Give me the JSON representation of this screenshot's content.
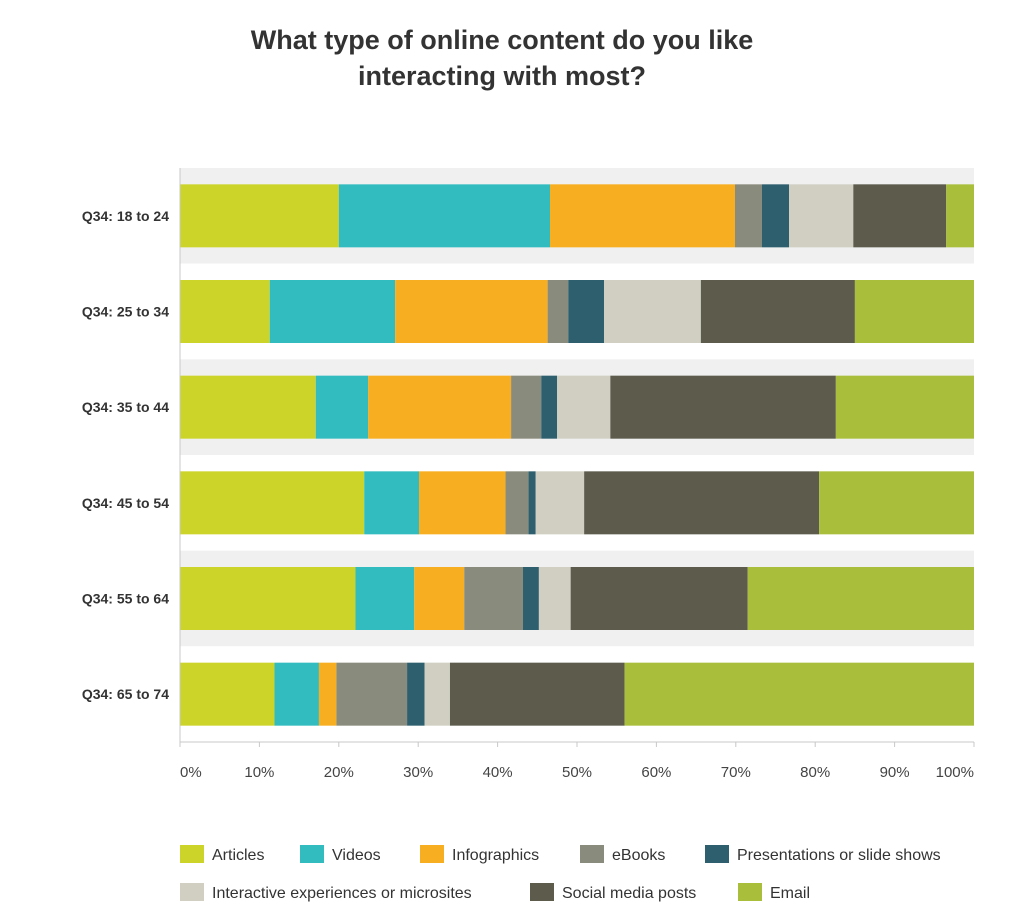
{
  "chart_data": {
    "type": "bar",
    "orientation": "horizontal",
    "stacked": true,
    "normalized": true,
    "title": "What type of online content do you like interacting with most?",
    "title_lines": [
      "What type of online content do you like",
      "interacting with most?"
    ],
    "xlabel": "",
    "ylabel": "",
    "xlim": [
      0,
      100
    ],
    "x_ticks": [
      "0%",
      "10%",
      "20%",
      "30%",
      "40%",
      "50%",
      "60%",
      "70%",
      "80%",
      "90%",
      "100%"
    ],
    "grid": false,
    "legend_position": "bottom",
    "categories": [
      "Q34: 18 to 24",
      "Q34: 25 to 34",
      "Q34: 35 to 44",
      "Q34: 45 to 54",
      "Q34: 55 to 64",
      "Q34: 65 to 74"
    ],
    "series": [
      {
        "name": "Articles",
        "color": "#ccd42a",
        "values": [
          20.0,
          11.3,
          17.1,
          23.2,
          22.1,
          11.9
        ]
      },
      {
        "name": "Videos",
        "color": "#33bcbf",
        "values": [
          26.6,
          15.8,
          6.6,
          6.9,
          7.4,
          5.6
        ]
      },
      {
        "name": "Infographics",
        "color": "#f7ae20",
        "values": [
          23.3,
          19.2,
          18.0,
          10.9,
          6.3,
          2.2
        ]
      },
      {
        "name": "eBooks",
        "color": "#898b7c",
        "values": [
          3.4,
          2.6,
          3.8,
          2.9,
          7.4,
          8.9
        ]
      },
      {
        "name": "Presentations or slide shows",
        "color": "#2e5f6e",
        "values": [
          3.4,
          4.5,
          2.0,
          0.9,
          2.0,
          2.2
        ]
      },
      {
        "name": "Interactive experiences or microsites",
        "color": "#d0cfc2",
        "values": [
          8.1,
          12.2,
          6.7,
          6.1,
          4.0,
          3.2
        ]
      },
      {
        "name": "Social media posts",
        "color": "#5c5b4c",
        "values": [
          11.7,
          19.4,
          28.4,
          29.6,
          22.3,
          22.0
        ]
      },
      {
        "name": "Email",
        "color": "#a9bf3b",
        "values": [
          3.5,
          15.0,
          17.4,
          19.5,
          28.5,
          44.0
        ]
      }
    ]
  }
}
